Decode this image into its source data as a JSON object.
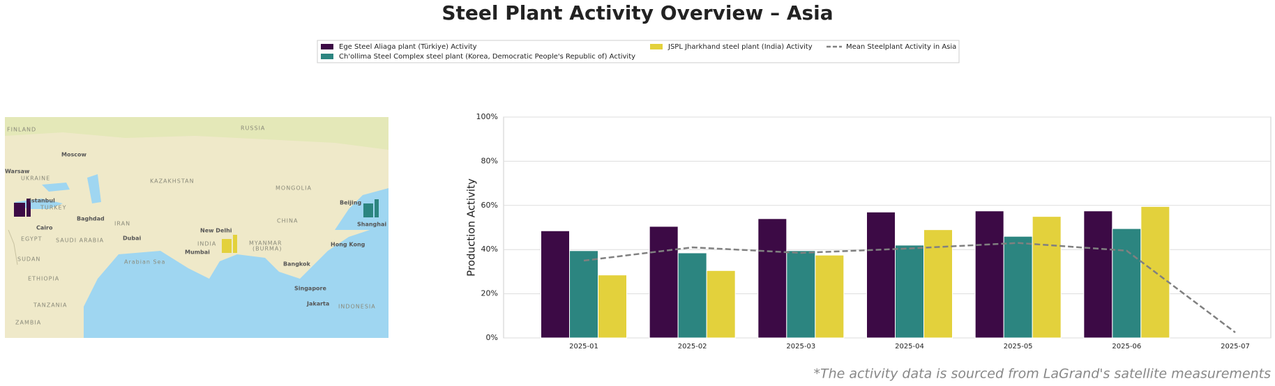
{
  "chart_data": {
    "type": "bar",
    "title": "Steel Plant Activity Overview – Asia",
    "ylabel": "Production Activity",
    "categories": [
      "2025-01",
      "2025-02",
      "2025-03",
      "2025-04",
      "2025-05",
      "2025-06",
      "2025-07"
    ],
    "series": [
      {
        "name": "Ege Steel Aliaga plant (Türkiye) Activity",
        "color": "#3c0a45",
        "values": [
          48.5,
          50.5,
          54,
          57,
          57.5,
          57.5,
          null
        ]
      },
      {
        "name": "Ch'ollima Steel Complex steel plant (Korea, Democratic People's Republic of) Activity",
        "color": "#2c8580",
        "values": [
          39.5,
          38.5,
          39.5,
          42,
          46,
          49.5,
          null
        ]
      },
      {
        "name": "JSPL Jharkhand steel plant (India) Activity",
        "color": "#e3d13c",
        "values": [
          28.5,
          30.5,
          37.5,
          49,
          55,
          59.5,
          null
        ]
      },
      {
        "name": "Mean Steelplant Activity in Asia",
        "type": "line",
        "color": "#808080",
        "values": [
          35,
          41,
          38.5,
          40.5,
          43,
          39.5,
          2.5
        ]
      }
    ],
    "ylim": [
      0,
      100
    ],
    "yticks": [
      {
        "value": 0,
        "label": "0%"
      },
      {
        "value": 20,
        "label": "20%"
      },
      {
        "value": 40,
        "label": "40%"
      },
      {
        "value": 60,
        "label": "60%"
      },
      {
        "value": 80,
        "label": "80%"
      },
      {
        "value": 100,
        "label": "100%"
      }
    ],
    "grid": true,
    "footnote": "*The activity data is sourced from LaGrand's satellite measurements"
  },
  "map_labels": [
    "FINLAND",
    "RUSSIA",
    "Moscow",
    "Warsaw",
    "UKRAINE",
    "KAZAKHSTAN",
    "MONGOLIA",
    "Istanbul",
    "TURKEY",
    "Beijing",
    "Baghdad",
    "IRAN",
    "CHINA",
    "Shanghai",
    "Cairo",
    "EGYPT",
    "SAUDI ARABIA",
    "Dubai",
    "New Delhi",
    "INDIA",
    "MYANMAR",
    "(BURMA)",
    "Hong Kong",
    "Mumbai",
    "SUDAN",
    "Arabian Sea",
    "Bangkok",
    "ETHIOPIA",
    "Singapore",
    "TANZANIA",
    "Jakarta",
    "INDONESIA",
    "ZAMBIA"
  ]
}
